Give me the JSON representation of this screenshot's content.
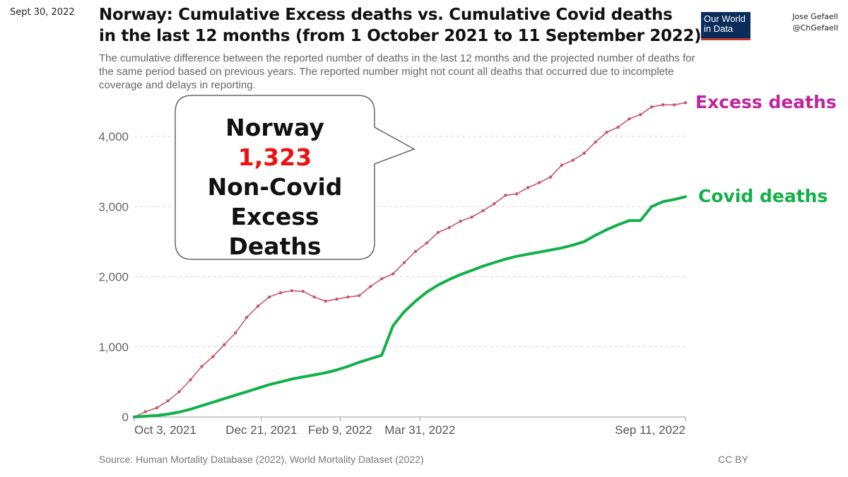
{
  "date_stamp": "Sept 30, 2022",
  "title_line1": "Norway: Cumulative Excess deaths vs. Cumulative Covid deaths",
  "title_line2": "in the last 12 months (from 1 October 2021 to 11 September 2022)",
  "subtitle": "The cumulative difference between the reported number of deaths in the last 12 months and the projected number of deaths for the same period based on previous years. The reported number might not count all deaths that occurred due to incomplete coverage and delays in reporting.",
  "logo": {
    "line1": "Our World",
    "line2": "in Data"
  },
  "author": {
    "name": "Jose Gefaell",
    "handle": "@ChGefaell"
  },
  "callout": {
    "line1": "Norway",
    "number": "1,323",
    "line2": "Non-Covid",
    "line3": "Excess Deaths"
  },
  "footer": {
    "source": "Source: Human Mortality Database (2022), World Mortality Dataset (2022)",
    "license": "CC BY"
  },
  "colors": {
    "excess": "#c8576b",
    "covid": "#12b04a",
    "excess_label": "#c0259a",
    "callout_number": "#ee1111"
  },
  "chart_data": {
    "type": "line",
    "ylim": [
      0,
      4500
    ],
    "yticks": [
      0,
      1000,
      2000,
      3000,
      4000
    ],
    "ytick_labels": [
      "0",
      "1,000",
      "2,000",
      "3,000",
      "4,000"
    ],
    "x_tick_labels": [
      "Oct 3, 2021",
      "Dec 21, 2021",
      "Feb 9, 2022",
      "Mar 31, 2022",
      "Sep 11, 2022"
    ],
    "x_tick_weeks": [
      0,
      11.3,
      18.3,
      25.4,
      49
    ],
    "grid": true,
    "series": [
      {
        "name": "Excess deaths",
        "values": [
          0,
          75,
          130,
          230,
          360,
          530,
          720,
          860,
          1030,
          1200,
          1420,
          1580,
          1710,
          1770,
          1800,
          1790,
          1710,
          1650,
          1680,
          1710,
          1730,
          1860,
          1970,
          2040,
          2200,
          2360,
          2480,
          2630,
          2700,
          2790,
          2850,
          2940,
          3040,
          3160,
          3180,
          3270,
          3340,
          3420,
          3590,
          3660,
          3760,
          3920,
          4060,
          4130,
          4250,
          4310,
          4420,
          4450,
          4450,
          4480
        ]
      },
      {
        "name": "Covid deaths",
        "values": [
          0,
          10,
          20,
          40,
          70,
          110,
          160,
          210,
          260,
          310,
          360,
          410,
          460,
          500,
          540,
          570,
          600,
          630,
          670,
          720,
          780,
          830,
          880,
          1300,
          1500,
          1650,
          1780,
          1880,
          1960,
          2030,
          2090,
          2150,
          2200,
          2250,
          2290,
          2320,
          2350,
          2380,
          2410,
          2450,
          2500,
          2590,
          2670,
          2740,
          2800,
          2800,
          3000,
          3070,
          3100,
          3140
        ]
      }
    ]
  }
}
